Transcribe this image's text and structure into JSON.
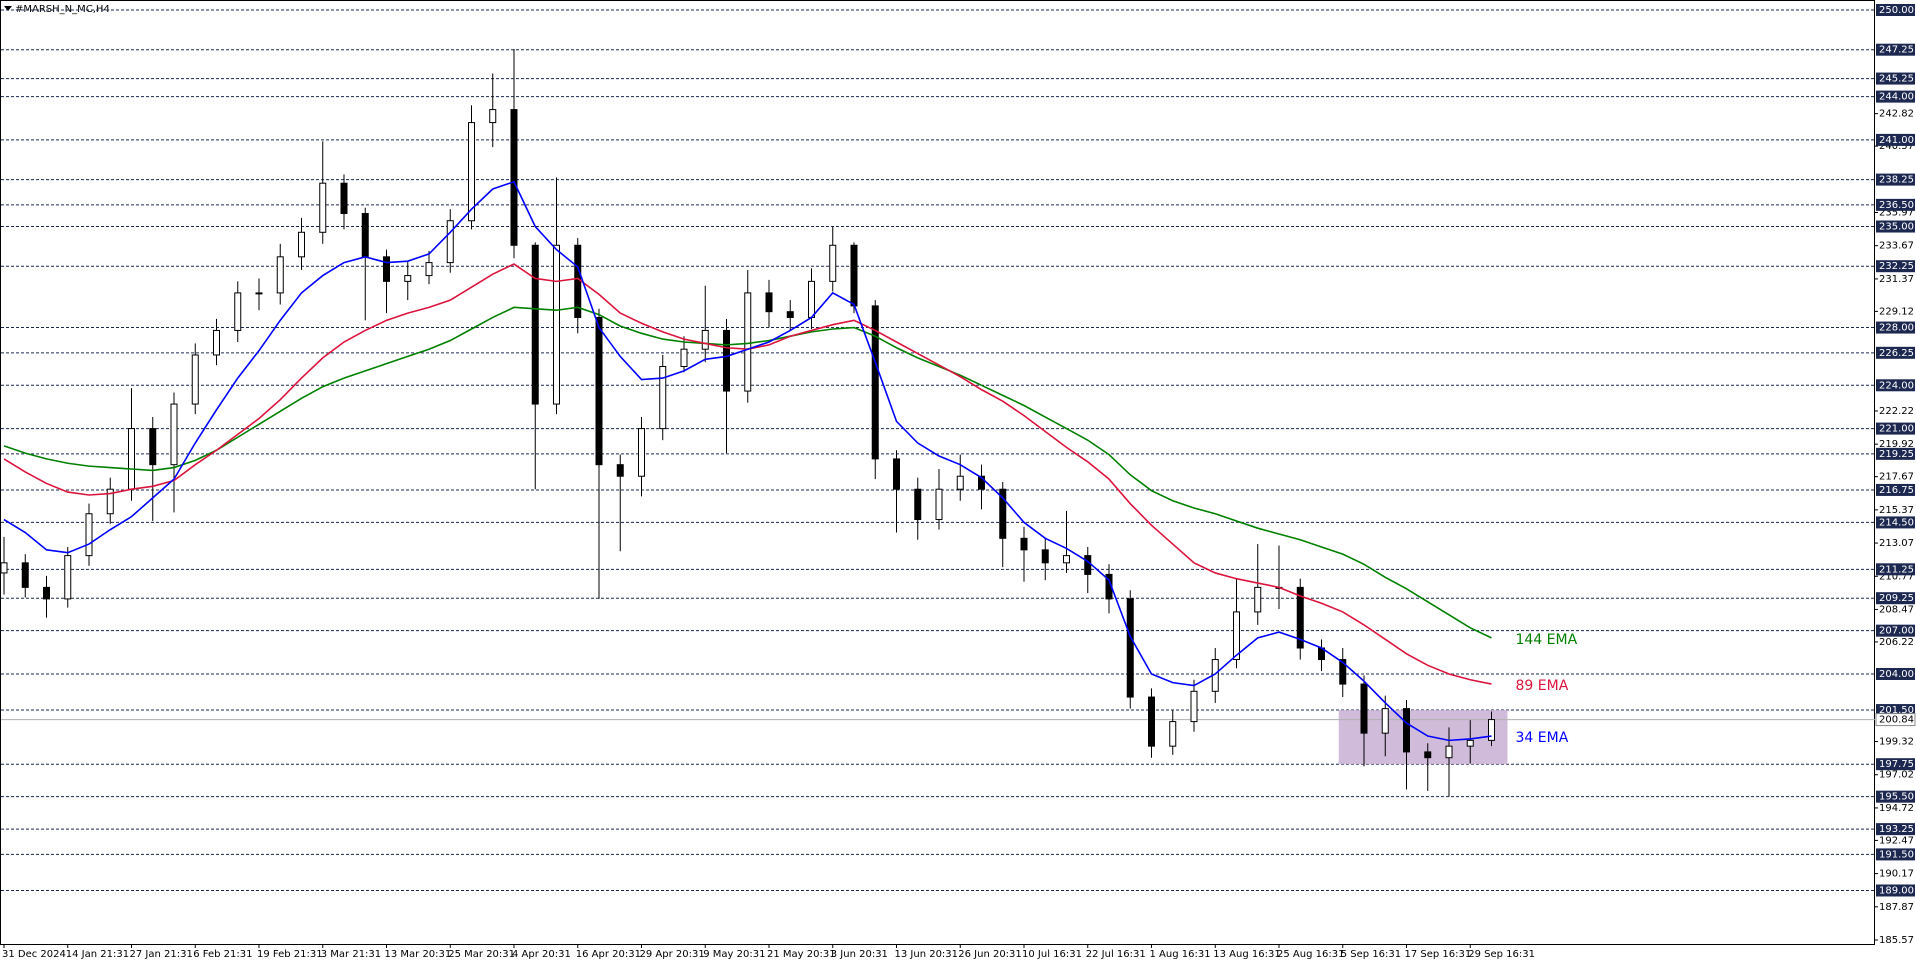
{
  "chart_data": {
    "type": "candlestick",
    "title": "#MARSH_N_MC,H4",
    "categories": [
      "31 Dec 2024",
      null,
      null,
      "14 Jan 21:31",
      null,
      null,
      "27 Jan 21:31",
      null,
      null,
      "6 Feb 21:31",
      null,
      null,
      "19 Feb 21:31",
      null,
      null,
      "3 Mar 21:31",
      null,
      null,
      "13 Mar 20:31",
      null,
      null,
      "25 Mar 20:31",
      null,
      null,
      "4 Apr 20:31",
      null,
      null,
      "16 Apr 20:31",
      null,
      null,
      "29 Apr 20:31",
      null,
      null,
      "9 May 20:31",
      null,
      null,
      "21 May 20:31",
      null,
      null,
      "3 Jun 20:31",
      null,
      null,
      "13 Jun 20:31",
      null,
      null,
      "26 Jun 20:31",
      null,
      null,
      "10 Jul 16:31",
      null,
      null,
      "22 Jul 16:31",
      null,
      null,
      "1 Aug 16:31",
      null,
      null,
      "13 Aug 16:31",
      null,
      null,
      "25 Aug 16:31",
      null,
      null,
      "5 Sep 16:31",
      null,
      null,
      "17 Sep 16:31",
      null,
      null,
      "29 Sep 16:31",
      null
    ],
    "open": [
      211.0,
      211.7,
      210.0,
      209.2,
      212.2,
      215.1,
      216.8,
      221.0,
      218.5,
      222.7,
      226.1,
      227.8,
      230.4,
      230.4,
      232.9,
      234.6,
      238.0,
      235.9,
      232.9,
      231.2,
      231.6,
      232.5,
      235.4,
      242.2,
      243.1,
      233.7,
      222.7,
      233.7,
      228.7,
      218.5,
      217.7,
      221.0,
      225.3,
      226.5,
      227.8,
      223.6,
      230.4,
      229.1,
      228.7,
      231.2,
      233.7,
      229.5,
      218.9,
      216.8,
      214.7,
      216.8,
      217.7,
      216.8,
      213.4,
      212.6,
      211.7,
      212.2,
      210.9,
      209.2,
      202.4,
      199.0,
      200.7,
      202.8,
      205.0,
      208.3,
      210.0,
      210.0,
      205.8,
      205.0,
      203.3,
      199.9,
      201.6,
      198.6,
      198.2,
      199.0,
      199.4
    ],
    "high": [
      213.5,
      212.3,
      210.8,
      212.8,
      215.8,
      217.6,
      223.8,
      221.8,
      223.5,
      226.9,
      228.6,
      231.2,
      231.4,
      233.8,
      235.6,
      240.9,
      238.6,
      236.3,
      233.4,
      232.6,
      233.3,
      236.2,
      243.4,
      245.6,
      247.3,
      233.9,
      238.4,
      234.2,
      229.3,
      219.2,
      221.8,
      226.1,
      227.4,
      230.9,
      228.6,
      232.0,
      231.3,
      229.9,
      232.1,
      235.0,
      233.9,
      229.9,
      219.5,
      217.6,
      218.2,
      219.2,
      218.5,
      217.3,
      214.2,
      213.4,
      215.3,
      212.8,
      211.6,
      209.8,
      203.0,
      201.5,
      203.6,
      205.8,
      210.6,
      213.0,
      212.9,
      210.6,
      206.4,
      205.8,
      203.9,
      202.5,
      202.2,
      199.2,
      200.3,
      200.8,
      201.4
    ],
    "low": [
      209.5,
      209.3,
      207.9,
      208.6,
      211.5,
      214.4,
      216.0,
      214.6,
      215.2,
      222.0,
      225.4,
      227.0,
      229.2,
      229.6,
      232.0,
      233.8,
      234.8,
      228.5,
      229.0,
      229.9,
      231.0,
      231.8,
      234.8,
      240.5,
      232.8,
      216.8,
      222.0,
      227.6,
      209.2,
      212.5,
      216.3,
      220.2,
      224.9,
      225.6,
      219.3,
      222.8,
      228.0,
      227.8,
      227.9,
      230.5,
      229.0,
      217.5,
      213.8,
      213.3,
      214.0,
      216.0,
      215.4,
      211.4,
      210.4,
      210.5,
      211.0,
      209.6,
      208.2,
      201.6,
      198.2,
      198.4,
      200.0,
      202.0,
      204.4,
      207.4,
      208.5,
      205.0,
      204.2,
      202.4,
      197.6,
      198.3,
      196.0,
      195.9,
      195.5,
      197.8,
      199.0
    ],
    "close": [
      211.7,
      210.0,
      209.2,
      212.2,
      215.1,
      216.8,
      221.0,
      218.5,
      222.7,
      226.1,
      227.8,
      230.4,
      230.4,
      232.9,
      234.6,
      238.0,
      235.9,
      232.9,
      231.2,
      231.6,
      232.5,
      235.4,
      242.2,
      243.1,
      233.7,
      222.7,
      233.7,
      228.7,
      218.5,
      217.7,
      221.0,
      225.3,
      226.5,
      227.8,
      223.6,
      230.4,
      229.1,
      228.7,
      231.2,
      233.7,
      229.5,
      218.9,
      216.8,
      214.7,
      216.8,
      217.7,
      216.8,
      213.4,
      212.6,
      211.7,
      212.2,
      210.9,
      209.2,
      202.4,
      199.0,
      200.7,
      202.8,
      205.0,
      208.3,
      210.0,
      210.0,
      205.8,
      205.0,
      203.3,
      199.9,
      201.6,
      198.6,
      198.2,
      199.0,
      199.4,
      200.84
    ],
    "bull_color": "#ffffff",
    "bear_color": "#000000",
    "series": [
      {
        "name": "144 EMA",
        "color": "#008000",
        "values": [
          219.8,
          219.3,
          218.9,
          218.6,
          218.4,
          218.3,
          218.2,
          218.1,
          218.3,
          218.8,
          219.5,
          220.4,
          221.3,
          222.2,
          223.1,
          223.9,
          224.5,
          225.0,
          225.5,
          226.0,
          226.5,
          227.1,
          227.9,
          228.7,
          229.4,
          229.3,
          229.2,
          229.4,
          228.9,
          228.1,
          227.6,
          227.2,
          227.0,
          226.9,
          226.8,
          226.9,
          227.1,
          227.4,
          227.7,
          227.9,
          228.0,
          227.4,
          226.6,
          225.9,
          225.3,
          224.7,
          224.0,
          223.3,
          222.6,
          221.8,
          221.0,
          220.2,
          219.2,
          217.8,
          216.7,
          216.0,
          215.5,
          215.1,
          214.6,
          214.1,
          213.7,
          213.3,
          212.8,
          212.3,
          211.6,
          210.7,
          209.9,
          209.0,
          208.1,
          207.2,
          206.5
        ]
      },
      {
        "name": "89 EMA",
        "color": "#dc143c",
        "values": [
          218.9,
          218.0,
          217.2,
          216.6,
          216.4,
          216.5,
          216.8,
          217.0,
          217.4,
          218.5,
          219.5,
          220.6,
          221.7,
          223.0,
          224.5,
          225.9,
          227.0,
          227.8,
          228.5,
          229.0,
          229.4,
          229.9,
          230.8,
          231.7,
          232.4,
          231.4,
          231.2,
          231.4,
          230.3,
          229.0,
          228.3,
          227.7,
          227.2,
          226.9,
          226.6,
          226.5,
          226.8,
          227.4,
          227.8,
          228.2,
          228.5,
          227.8,
          227.0,
          226.2,
          225.4,
          224.6,
          223.7,
          222.9,
          221.9,
          220.8,
          219.7,
          218.7,
          217.5,
          215.8,
          214.3,
          213.0,
          211.7,
          211.0,
          210.6,
          210.3,
          210.0,
          209.4,
          208.9,
          208.3,
          207.4,
          206.4,
          205.4,
          204.6,
          204.0,
          203.6,
          203.3
        ]
      },
      {
        "name": "34 EMA",
        "color": "#0000ff",
        "values": [
          214.7,
          213.8,
          212.6,
          212.4,
          213.0,
          214.0,
          214.9,
          216.2,
          217.5,
          220.0,
          222.3,
          224.5,
          226.4,
          228.5,
          230.4,
          231.6,
          232.5,
          232.9,
          232.5,
          232.6,
          233.1,
          234.6,
          236.2,
          237.6,
          238.1,
          235.0,
          233.4,
          232.2,
          228.0,
          226.0,
          224.4,
          224.5,
          225.0,
          225.8,
          226.0,
          226.5,
          227.0,
          227.8,
          228.7,
          230.4,
          229.6,
          225.6,
          221.5,
          220.0,
          219.1,
          218.5,
          217.6,
          216.2,
          214.5,
          213.4,
          212.7,
          211.8,
          210.5,
          206.6,
          204.0,
          203.4,
          203.2,
          204.0,
          205.3,
          206.5,
          206.9,
          206.4,
          205.8,
          204.8,
          203.5,
          202.0,
          200.6,
          199.7,
          199.4,
          199.5,
          199.7
        ]
      }
    ],
    "ylim": [
      185.57,
      250.0
    ],
    "yticks": [
      {
        "value": 185.57,
        "label": "185.57"
      },
      {
        "value": 187.87,
        "label": "187.87"
      },
      {
        "value": 190.17,
        "label": "190.17"
      },
      {
        "value": 192.47,
        "label": "192.47"
      },
      {
        "value": 194.72,
        "label": "194.72"
      },
      {
        "value": 197.02,
        "label": "197.02"
      },
      {
        "value": 199.32,
        "label": "199.32"
      },
      {
        "value": 206.22,
        "label": "206.22"
      },
      {
        "value": 208.47,
        "label": "208.47"
      },
      {
        "value": 210.77,
        "label": "210.77"
      },
      {
        "value": 213.07,
        "label": "213.07"
      },
      {
        "value": 215.37,
        "label": "215.37"
      },
      {
        "value": 217.67,
        "label": "217.67"
      },
      {
        "value": 219.92,
        "label": "219.92"
      },
      {
        "value": 222.22,
        "label": "222.22"
      },
      {
        "value": 229.12,
        "label": "229.12"
      },
      {
        "value": 231.37,
        "label": "231.37"
      },
      {
        "value": 233.67,
        "label": "233.67"
      },
      {
        "value": 235.97,
        "label": "235.97"
      },
      {
        "value": 240.57,
        "label": "240.57"
      },
      {
        "value": 242.82,
        "label": "242.82"
      }
    ],
    "levels": [
      {
        "value": 250.0,
        "label": "250.00"
      },
      {
        "value": 247.25,
        "label": "247.25"
      },
      {
        "value": 245.25,
        "label": "245.25"
      },
      {
        "value": 244.0,
        "label": "244.00"
      },
      {
        "value": 241.0,
        "label": "241.00"
      },
      {
        "value": 238.25,
        "label": "238.25"
      },
      {
        "value": 236.5,
        "label": "236.50"
      },
      {
        "value": 235.0,
        "label": "235.00"
      },
      {
        "value": 232.25,
        "label": "232.25"
      },
      {
        "value": 228.0,
        "label": "228.00"
      },
      {
        "value": 226.25,
        "label": "226.25"
      },
      {
        "value": 224.0,
        "label": "224.00"
      },
      {
        "value": 221.0,
        "label": "221.00"
      },
      {
        "value": 219.25,
        "label": "219.25"
      },
      {
        "value": 216.75,
        "label": "216.75"
      },
      {
        "value": 214.5,
        "label": "214.50"
      },
      {
        "value": 211.25,
        "label": "211.25"
      },
      {
        "value": 209.25,
        "label": "209.25"
      },
      {
        "value": 207.0,
        "label": "207.00"
      },
      {
        "value": 204.0,
        "label": "204.00"
      },
      {
        "value": 201.5,
        "label": "201.50"
      },
      {
        "value": 197.75,
        "label": "197.75"
      },
      {
        "value": 195.5,
        "label": "195.50"
      },
      {
        "value": 193.25,
        "label": "193.25"
      },
      {
        "value": 191.5,
        "label": "191.50"
      },
      {
        "value": 189.0,
        "label": "189.00"
      }
    ],
    "last_price": {
      "value": 200.84,
      "label": "200.84"
    },
    "zone": {
      "high": 201.5,
      "low": 197.75,
      "color": "#c8b0d4"
    }
  }
}
